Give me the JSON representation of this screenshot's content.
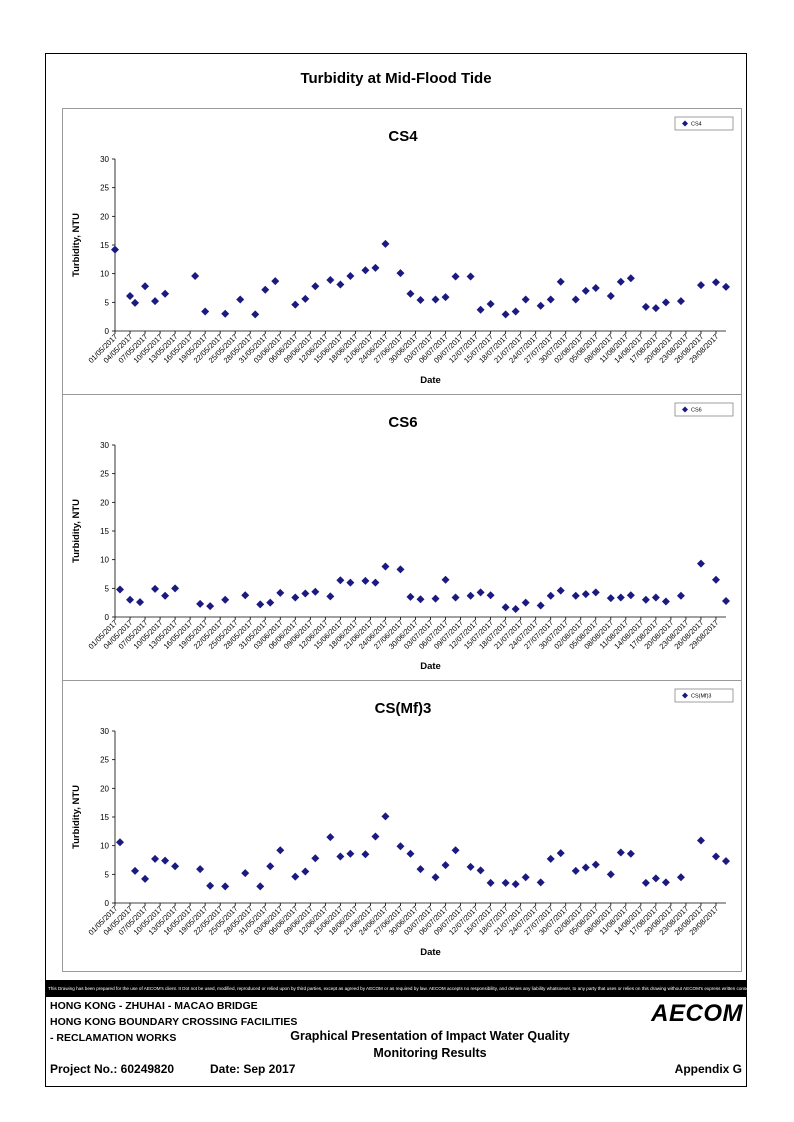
{
  "page": {
    "main_title": "Turbidity at Mid-Flood Tide",
    "footer_disclaimer": "This Drawing has been prepared for the use of AECOM's client. It Dot not be used, modified, reproduced or relied upon by third parties, except as agreed by AECOM or as required by law. AECOM accepts no responsibility, and denies any liability whatsoever, to any party that uses or relies on this drawing without AECOM's express written consent.",
    "project_line1": "HONG KONG - ZHUHAI - MACAO BRIDGE",
    "project_line2": "HONG KONG BOUNDARY CROSSING FACILITIES",
    "project_line3": "- RECLAMATION WORKS",
    "drawing_title_line1": "Graphical Presentation of Impact Water Quality",
    "drawing_title_line2": "Monitoring Results",
    "project_no": "Project No.: 60249820",
    "date": "Date: Sep 2017",
    "appendix": "Appendix G",
    "logo_text": "AECOM",
    "marker_color": "#1a1a80"
  },
  "chart_data": [
    {
      "type": "scatter",
      "title": "CS4",
      "xlabel": "Date",
      "ylabel": "Turbidity, NTU",
      "ylim": [
        0,
        30
      ],
      "yticks": [
        0,
        5,
        10,
        15,
        20,
        25,
        30
      ],
      "legend": "CS4",
      "legend_position": "top-right",
      "grid": false,
      "xlim": [
        "01/05/2017",
        "31/08/2017"
      ],
      "xticks": [
        "01/05/2017",
        "04/05/2017",
        "07/05/2017",
        "10/05/2017",
        "13/05/2017",
        "16/05/2017",
        "19/05/2017",
        "22/05/2017",
        "25/05/2017",
        "28/05/2017",
        "31/05/2017",
        "03/06/2017",
        "06/06/2017",
        "09/06/2017",
        "12/06/2017",
        "15/06/2017",
        "18/06/2017",
        "21/06/2017",
        "24/06/2017",
        "27/06/2017",
        "30/06/2017",
        "03/07/2017",
        "06/07/2017",
        "09/07/2017",
        "12/07/2017",
        "15/07/2017",
        "18/07/2017",
        "21/07/2017",
        "24/07/2017",
        "27/07/2017",
        "30/07/2017",
        "02/08/2017",
        "05/08/2017",
        "08/08/2017",
        "11/08/2017",
        "14/08/2017",
        "17/08/2017",
        "20/08/2017",
        "23/08/2017",
        "26/08/2017",
        "29/08/2017"
      ],
      "points": [
        {
          "x": "01/05/2017",
          "y": 14.2
        },
        {
          "x": "04/05/2017",
          "y": 6.1
        },
        {
          "x": "05/05/2017",
          "y": 4.9
        },
        {
          "x": "07/05/2017",
          "y": 7.8
        },
        {
          "x": "09/05/2017",
          "y": 5.2
        },
        {
          "x": "11/05/2017",
          "y": 6.5
        },
        {
          "x": "17/05/2017",
          "y": 9.6
        },
        {
          "x": "19/05/2017",
          "y": 3.4
        },
        {
          "x": "23/05/2017",
          "y": 3.0
        },
        {
          "x": "26/05/2017",
          "y": 5.5
        },
        {
          "x": "29/05/2017",
          "y": 2.9
        },
        {
          "x": "31/05/2017",
          "y": 7.2
        },
        {
          "x": "02/06/2017",
          "y": 8.7
        },
        {
          "x": "06/06/2017",
          "y": 4.6
        },
        {
          "x": "08/06/2017",
          "y": 5.6
        },
        {
          "x": "10/06/2017",
          "y": 7.8
        },
        {
          "x": "13/06/2017",
          "y": 8.9
        },
        {
          "x": "15/06/2017",
          "y": 8.1
        },
        {
          "x": "17/06/2017",
          "y": 9.6
        },
        {
          "x": "20/06/2017",
          "y": 10.6
        },
        {
          "x": "22/06/2017",
          "y": 11.0
        },
        {
          "x": "24/06/2017",
          "y": 15.2
        },
        {
          "x": "27/06/2017",
          "y": 10.1
        },
        {
          "x": "29/06/2017",
          "y": 6.5
        },
        {
          "x": "01/07/2017",
          "y": 5.4
        },
        {
          "x": "04/07/2017",
          "y": 5.5
        },
        {
          "x": "06/07/2017",
          "y": 5.9
        },
        {
          "x": "08/07/2017",
          "y": 9.5
        },
        {
          "x": "11/07/2017",
          "y": 9.5
        },
        {
          "x": "13/07/2017",
          "y": 3.7
        },
        {
          "x": "15/07/2017",
          "y": 4.7
        },
        {
          "x": "18/07/2017",
          "y": 2.9
        },
        {
          "x": "20/07/2017",
          "y": 3.4
        },
        {
          "x": "22/07/2017",
          "y": 5.5
        },
        {
          "x": "25/07/2017",
          "y": 4.4
        },
        {
          "x": "27/07/2017",
          "y": 5.5
        },
        {
          "x": "29/07/2017",
          "y": 8.6
        },
        {
          "x": "01/08/2017",
          "y": 5.5
        },
        {
          "x": "03/08/2017",
          "y": 7.0
        },
        {
          "x": "05/08/2017",
          "y": 7.5
        },
        {
          "x": "08/08/2017",
          "y": 6.1
        },
        {
          "x": "10/08/2017",
          "y": 8.6
        },
        {
          "x": "12/08/2017",
          "y": 9.2
        },
        {
          "x": "15/08/2017",
          "y": 4.2
        },
        {
          "x": "17/08/2017",
          "y": 4.0
        },
        {
          "x": "19/08/2017",
          "y": 5.0
        },
        {
          "x": "22/08/2017",
          "y": 5.2
        },
        {
          "x": "26/08/2017",
          "y": 8.0
        },
        {
          "x": "29/08/2017",
          "y": 8.5
        },
        {
          "x": "31/08/2017",
          "y": 7.7
        }
      ]
    },
    {
      "type": "scatter",
      "title": "CS6",
      "xlabel": "Date",
      "ylabel": "Turbidity, NTU",
      "ylim": [
        0,
        30
      ],
      "yticks": [
        0,
        5,
        10,
        15,
        20,
        25,
        30
      ],
      "legend": "CS6",
      "legend_position": "top-right",
      "grid": false,
      "xlim": [
        "01/05/2017",
        "31/08/2017"
      ],
      "xticks": [
        "01/05/2017",
        "04/05/2017",
        "07/05/2017",
        "10/05/2017",
        "13/05/2017",
        "16/05/2017",
        "19/05/2017",
        "22/05/2017",
        "25/05/2017",
        "28/05/2017",
        "31/05/2017",
        "03/06/2017",
        "06/06/2017",
        "09/06/2017",
        "12/06/2017",
        "15/06/2017",
        "18/06/2017",
        "21/06/2017",
        "24/06/2017",
        "27/06/2017",
        "30/06/2017",
        "03/07/2017",
        "06/07/2017",
        "09/07/2017",
        "12/07/2017",
        "15/07/2017",
        "18/07/2017",
        "21/07/2017",
        "24/07/2017",
        "27/07/2017",
        "30/07/2017",
        "02/08/2017",
        "05/08/2017",
        "08/08/2017",
        "11/08/2017",
        "14/08/2017",
        "17/08/2017",
        "20/08/2017",
        "23/08/2017",
        "26/08/2017",
        "29/08/2017"
      ],
      "points": [
        {
          "x": "02/05/2017",
          "y": 4.8
        },
        {
          "x": "04/05/2017",
          "y": 3.0
        },
        {
          "x": "06/05/2017",
          "y": 2.6
        },
        {
          "x": "09/05/2017",
          "y": 4.9
        },
        {
          "x": "11/05/2017",
          "y": 3.7
        },
        {
          "x": "13/05/2017",
          "y": 5.0
        },
        {
          "x": "18/05/2017",
          "y": 2.3
        },
        {
          "x": "20/05/2017",
          "y": 1.9
        },
        {
          "x": "23/05/2017",
          "y": 3.0
        },
        {
          "x": "27/05/2017",
          "y": 3.8
        },
        {
          "x": "30/05/2017",
          "y": 2.2
        },
        {
          "x": "01/06/2017",
          "y": 2.5
        },
        {
          "x": "03/06/2017",
          "y": 4.2
        },
        {
          "x": "06/06/2017",
          "y": 3.4
        },
        {
          "x": "08/06/2017",
          "y": 4.1
        },
        {
          "x": "10/06/2017",
          "y": 4.4
        },
        {
          "x": "13/06/2017",
          "y": 3.6
        },
        {
          "x": "15/06/2017",
          "y": 6.4
        },
        {
          "x": "17/06/2017",
          "y": 6.0
        },
        {
          "x": "20/06/2017",
          "y": 6.3
        },
        {
          "x": "22/06/2017",
          "y": 6.0
        },
        {
          "x": "24/06/2017",
          "y": 8.8
        },
        {
          "x": "27/06/2017",
          "y": 8.3
        },
        {
          "x": "29/06/2017",
          "y": 3.5
        },
        {
          "x": "01/07/2017",
          "y": 3.1
        },
        {
          "x": "04/07/2017",
          "y": 3.2
        },
        {
          "x": "06/07/2017",
          "y": 6.5
        },
        {
          "x": "08/07/2017",
          "y": 3.4
        },
        {
          "x": "11/07/2017",
          "y": 3.7
        },
        {
          "x": "13/07/2017",
          "y": 4.3
        },
        {
          "x": "15/07/2017",
          "y": 3.8
        },
        {
          "x": "18/07/2017",
          "y": 1.7
        },
        {
          "x": "20/07/2017",
          "y": 1.4
        },
        {
          "x": "22/07/2017",
          "y": 2.5
        },
        {
          "x": "25/07/2017",
          "y": 2.0
        },
        {
          "x": "27/07/2017",
          "y": 3.7
        },
        {
          "x": "29/07/2017",
          "y": 4.6
        },
        {
          "x": "01/08/2017",
          "y": 3.7
        },
        {
          "x": "03/08/2017",
          "y": 4.0
        },
        {
          "x": "05/08/2017",
          "y": 4.3
        },
        {
          "x": "08/08/2017",
          "y": 3.3
        },
        {
          "x": "10/08/2017",
          "y": 3.4
        },
        {
          "x": "12/08/2017",
          "y": 3.8
        },
        {
          "x": "15/08/2017",
          "y": 3.0
        },
        {
          "x": "17/08/2017",
          "y": 3.4
        },
        {
          "x": "19/08/2017",
          "y": 2.7
        },
        {
          "x": "22/08/2017",
          "y": 3.7
        },
        {
          "x": "26/08/2017",
          "y": 9.3
        },
        {
          "x": "29/08/2017",
          "y": 6.5
        },
        {
          "x": "31/08/2017",
          "y": 2.8
        }
      ]
    },
    {
      "type": "scatter",
      "title": "CS(Mf)3",
      "xlabel": "Date",
      "ylabel": "Turbidity, NTU",
      "ylim": [
        0,
        30
      ],
      "yticks": [
        0,
        5,
        10,
        15,
        20,
        25,
        30
      ],
      "legend": "CS(Mf)3",
      "legend_position": "top-right",
      "grid": false,
      "xlim": [
        "01/05/2017",
        "31/08/2017"
      ],
      "xticks": [
        "01/05/2017",
        "04/05/2017",
        "07/05/2017",
        "10/05/2017",
        "13/05/2017",
        "16/05/2017",
        "19/05/2017",
        "22/05/2017",
        "25/05/2017",
        "28/05/2017",
        "31/05/2017",
        "03/06/2017",
        "06/06/2017",
        "09/06/2017",
        "12/06/2017",
        "15/06/2017",
        "18/06/2017",
        "21/06/2017",
        "24/06/2017",
        "27/06/2017",
        "30/06/2017",
        "03/07/2017",
        "06/07/2017",
        "09/07/2017",
        "12/07/2017",
        "15/07/2017",
        "18/07/2017",
        "21/07/2017",
        "24/07/2017",
        "27/07/2017",
        "30/07/2017",
        "02/08/2017",
        "05/08/2017",
        "08/08/2017",
        "11/08/2017",
        "14/08/2017",
        "17/08/2017",
        "20/08/2017",
        "23/08/2017",
        "26/08/2017",
        "29/08/2017"
      ],
      "points": [
        {
          "x": "02/05/2017",
          "y": 10.6
        },
        {
          "x": "05/05/2017",
          "y": 5.6
        },
        {
          "x": "07/05/2017",
          "y": 4.2
        },
        {
          "x": "09/05/2017",
          "y": 7.7
        },
        {
          "x": "11/05/2017",
          "y": 7.4
        },
        {
          "x": "13/05/2017",
          "y": 6.4
        },
        {
          "x": "18/05/2017",
          "y": 5.9
        },
        {
          "x": "20/05/2017",
          "y": 3.0
        },
        {
          "x": "23/05/2017",
          "y": 2.9
        },
        {
          "x": "27/05/2017",
          "y": 5.2
        },
        {
          "x": "30/05/2017",
          "y": 2.9
        },
        {
          "x": "01/06/2017",
          "y": 6.4
        },
        {
          "x": "03/06/2017",
          "y": 9.2
        },
        {
          "x": "06/06/2017",
          "y": 4.6
        },
        {
          "x": "08/06/2017",
          "y": 5.5
        },
        {
          "x": "10/06/2017",
          "y": 7.8
        },
        {
          "x": "13/06/2017",
          "y": 11.5
        },
        {
          "x": "15/06/2017",
          "y": 8.1
        },
        {
          "x": "17/06/2017",
          "y": 8.6
        },
        {
          "x": "20/06/2017",
          "y": 8.5
        },
        {
          "x": "22/06/2017",
          "y": 11.6
        },
        {
          "x": "24/06/2017",
          "y": 15.1
        },
        {
          "x": "27/06/2017",
          "y": 9.9
        },
        {
          "x": "29/06/2017",
          "y": 8.6
        },
        {
          "x": "01/07/2017",
          "y": 5.9
        },
        {
          "x": "04/07/2017",
          "y": 4.5
        },
        {
          "x": "06/07/2017",
          "y": 6.6
        },
        {
          "x": "08/07/2017",
          "y": 9.2
        },
        {
          "x": "11/07/2017",
          "y": 6.3
        },
        {
          "x": "13/07/2017",
          "y": 5.7
        },
        {
          "x": "15/07/2017",
          "y": 3.5
        },
        {
          "x": "18/07/2017",
          "y": 3.5
        },
        {
          "x": "20/07/2017",
          "y": 3.3
        },
        {
          "x": "22/07/2017",
          "y": 4.5
        },
        {
          "x": "25/07/2017",
          "y": 3.6
        },
        {
          "x": "27/07/2017",
          "y": 7.7
        },
        {
          "x": "29/07/2017",
          "y": 8.7
        },
        {
          "x": "01/08/2017",
          "y": 5.6
        },
        {
          "x": "03/08/2017",
          "y": 6.2
        },
        {
          "x": "05/08/2017",
          "y": 6.7
        },
        {
          "x": "08/08/2017",
          "y": 5.0
        },
        {
          "x": "10/08/2017",
          "y": 8.8
        },
        {
          "x": "12/08/2017",
          "y": 8.6
        },
        {
          "x": "15/08/2017",
          "y": 3.5
        },
        {
          "x": "17/08/2017",
          "y": 4.3
        },
        {
          "x": "19/08/2017",
          "y": 3.6
        },
        {
          "x": "22/08/2017",
          "y": 4.5
        },
        {
          "x": "26/08/2017",
          "y": 10.9
        },
        {
          "x": "29/08/2017",
          "y": 8.1
        },
        {
          "x": "31/08/2017",
          "y": 7.3
        }
      ]
    }
  ]
}
